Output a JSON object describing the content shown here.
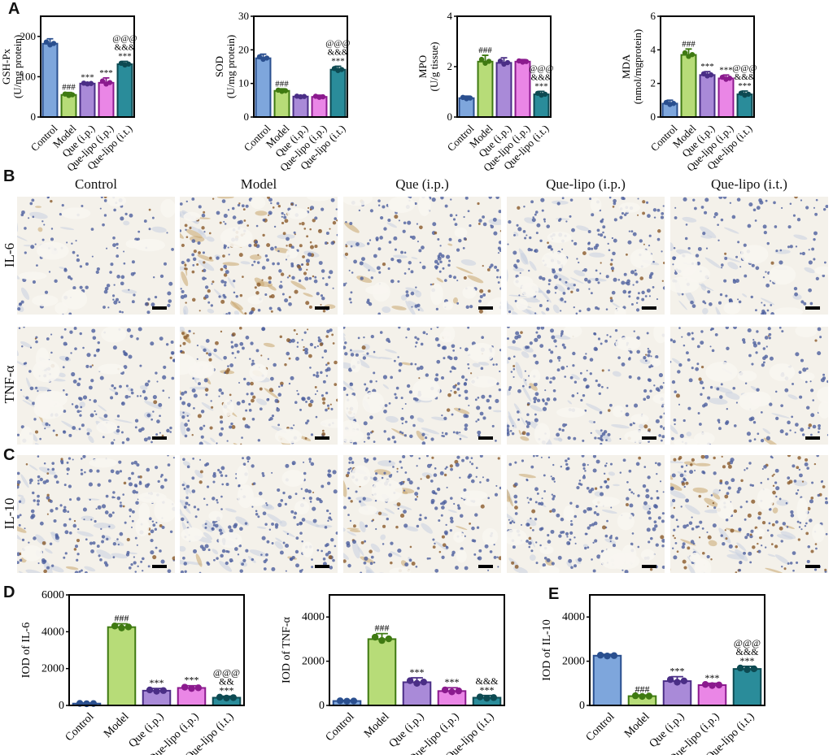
{
  "panel_letters": {
    "a": "A",
    "b": "B",
    "c": "C",
    "d": "D",
    "e": "E"
  },
  "colors": {
    "Control": {
      "fill": "#7ea6dc",
      "edge": "#2a4f8f"
    },
    "Model": {
      "fill": "#b7dc78",
      "edge": "#3f7a12"
    },
    "Que (i.p.)": {
      "fill": "#a98ad8",
      "edge": "#4a2e86"
    },
    "Que-lipo (i.p.)": {
      "fill": "#ea86e6",
      "edge": "#8b1a8e"
    },
    "Que-lipo (i.t.)": {
      "fill": "#2a8c9a",
      "edge": "#0d4a52"
    }
  },
  "chart_data": [
    {
      "type": "bar",
      "panel": "A",
      "categories": [
        "Control",
        "Model",
        "Que (i.p.)",
        "Que-lipo (i.p.)",
        "Que-lipo (i.t.)"
      ],
      "values": [
        182,
        55,
        83,
        85,
        131
      ],
      "errors": [
        12,
        6,
        3,
        12,
        7
      ],
      "ylabel": [
        "GSH-Px",
        "(U/mg protein)"
      ],
      "ylim": [
        0,
        250
      ],
      "yticks": [
        0,
        100,
        200
      ],
      "annotations": [
        [],
        [
          "###"
        ],
        [
          "***"
        ],
        [
          "***"
        ],
        [
          "***",
          "&&&",
          "@@@"
        ]
      ]
    },
    {
      "type": "bar",
      "panel": "A",
      "categories": [
        "Control",
        "Model",
        "Que (i.p.)",
        "Que-lipo (i.p.)",
        "Que-lipo (i.t.)"
      ],
      "values": [
        17.5,
        7.8,
        6.1,
        6.0,
        14.1
      ],
      "errors": [
        1.2,
        0.6,
        0.3,
        0.5,
        1.0
      ],
      "ylabel": [
        "SOD",
        "(U/mg protein)"
      ],
      "ylim": [
        0,
        30
      ],
      "yticks": [
        0,
        10,
        20,
        30
      ],
      "annotations": [
        [],
        [
          "###"
        ],
        [],
        [],
        [
          "***",
          "&&&",
          "@@@"
        ]
      ]
    },
    {
      "type": "bar",
      "panel": "A",
      "categories": [
        "Control",
        "Model",
        "Que (i.p.)",
        "Que-lipo (i.p.)",
        "Que-lipo (i.t.)"
      ],
      "values": [
        0.75,
        2.2,
        2.15,
        2.2,
        0.9
      ],
      "errors": [
        0.08,
        0.25,
        0.2,
        0.08,
        0.12
      ],
      "ylabel": [
        "MPO",
        "(U/g tissue)"
      ],
      "ylim": [
        0,
        4
      ],
      "yticks": [
        0,
        2,
        4
      ],
      "annotations": [
        [],
        [
          "###"
        ],
        [],
        [],
        [
          "***",
          "&&&",
          "@@@"
        ]
      ]
    },
    {
      "type": "bar",
      "panel": "A",
      "categories": [
        "Control",
        "Model",
        "Que (i.p.)",
        "Que-lipo (i.p.)",
        "Que-lipo (i.t.)"
      ],
      "values": [
        0.8,
        3.7,
        2.5,
        2.3,
        1.35
      ],
      "errors": [
        0.2,
        0.35,
        0.2,
        0.2,
        0.2
      ],
      "ylabel": [
        "MDA",
        "(nmol/mgprotein)"
      ],
      "ylim": [
        0,
        6
      ],
      "yticks": [
        0,
        2,
        4,
        6
      ],
      "annotations": [
        [],
        [
          "###"
        ],
        [
          "***"
        ],
        [
          "***"
        ],
        [
          "***",
          "&&&",
          "@@@"
        ]
      ]
    },
    {
      "type": "bar",
      "panel": "D",
      "categories": [
        "Control",
        "Model",
        "Que (i.p.)",
        "Que-lipo (i.p.)",
        "Que-lipo (i.t.)"
      ],
      "values": [
        100,
        4250,
        800,
        950,
        420
      ],
      "errors": [
        30,
        180,
        120,
        120,
        80
      ],
      "ylabel": [
        "IOD of IL-6"
      ],
      "ylim": [
        0,
        6000
      ],
      "yticks": [
        0,
        2000,
        4000,
        6000
      ],
      "annotations": [
        [],
        [
          "###"
        ],
        [
          "***"
        ],
        [
          "***"
        ],
        [
          "***",
          "&&",
          "@@@"
        ]
      ]
    },
    {
      "type": "bar",
      "panel": "D",
      "categories": [
        "Control",
        "Model",
        "Que (i.p.)",
        "Que-lipo (i.p.)",
        "Que-lipo (i.t.)"
      ],
      "values": [
        200,
        3000,
        1050,
        650,
        350
      ],
      "errors": [
        30,
        250,
        200,
        150,
        100
      ],
      "ylabel": [
        "IOD of TNF-α"
      ],
      "ylim": [
        0,
        5000
      ],
      "yticks": [
        0,
        2000,
        4000
      ],
      "annotations": [
        [],
        [
          "###"
        ],
        [
          "***"
        ],
        [
          "***"
        ],
        [
          "***",
          "&&&"
        ]
      ]
    },
    {
      "type": "bar",
      "panel": "E",
      "categories": [
        "Control",
        "Model",
        "Que (i.p.)",
        "Que-lipo (i.p.)",
        "Que-lipo (i.t.)"
      ],
      "values": [
        2250,
        420,
        1100,
        920,
        1650
      ],
      "errors": [
        60,
        50,
        200,
        80,
        120
      ],
      "ylabel": [
        "IOD of IL-10"
      ],
      "ylim": [
        0,
        5000
      ],
      "yticks": [
        0,
        2000,
        4000
      ],
      "annotations": [
        [],
        [
          "###"
        ],
        [
          "***"
        ],
        [
          "***"
        ],
        [
          "***",
          "&&&",
          "@@@"
        ]
      ]
    }
  ],
  "micrographs": {
    "columns": [
      "Control",
      "Model",
      "Que (i.p.)",
      "Que-lipo (i.p.)",
      "Que-lipo (i.t.)"
    ],
    "rows": [
      "IL-6",
      "TNF-α",
      "IL-10"
    ]
  }
}
